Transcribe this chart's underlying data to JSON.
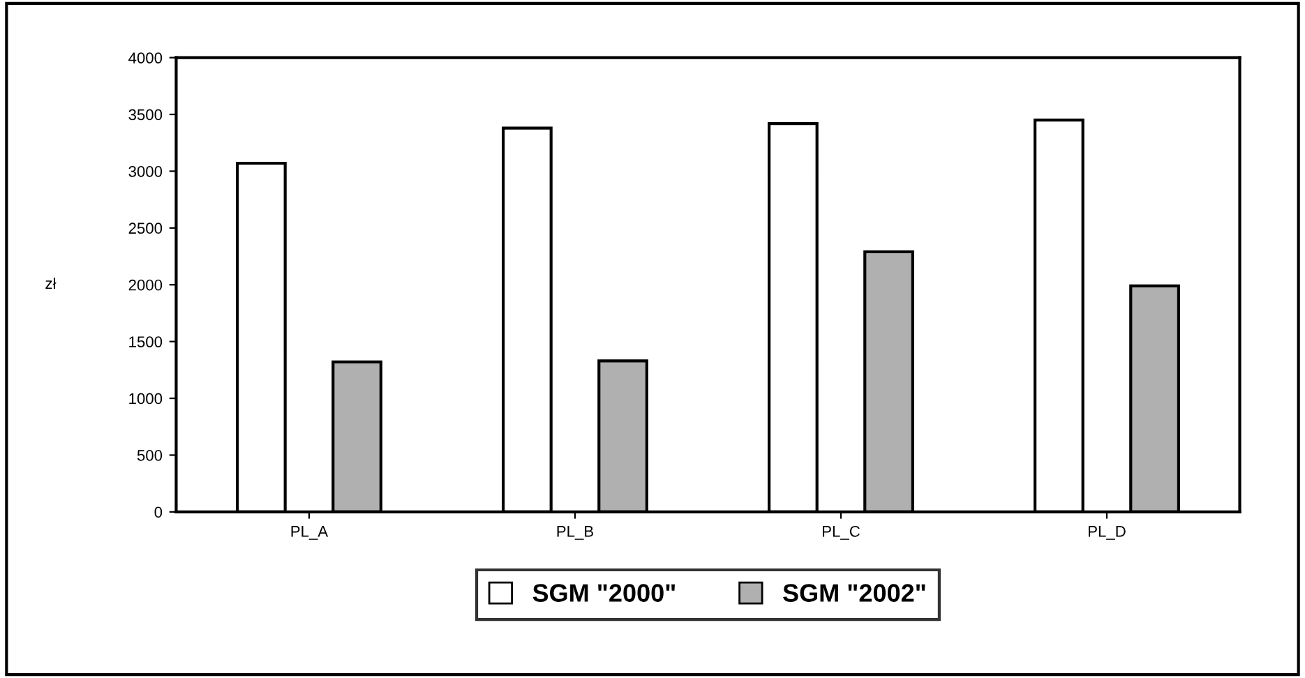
{
  "chart_data": {
    "type": "bar",
    "ylabel": "zł",
    "categories": [
      "PL_A",
      "PL_B",
      "PL_C",
      "PL_D"
    ],
    "series": [
      {
        "name": "SGM \"2000\"",
        "color": "#ffffff",
        "values": [
          3070,
          3380,
          3420,
          3450
        ]
      },
      {
        "name": "SGM \"2002\"",
        "color": "#b0b0b0",
        "values": [
          1320,
          1330,
          2290,
          1990
        ]
      }
    ],
    "ylim": [
      0,
      4000
    ],
    "yticks": [
      0,
      500,
      1000,
      1500,
      2000,
      2500,
      3000,
      3500,
      4000
    ],
    "grid": false,
    "legend": "bottom"
  }
}
